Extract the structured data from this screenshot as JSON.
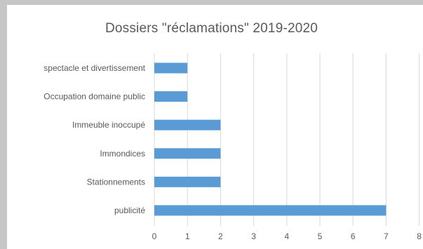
{
  "chart_data": {
    "type": "bar",
    "orientation": "horizontal",
    "title": "Dossiers \"réclamations\" 2019-2020",
    "xlabel": "",
    "ylabel": "",
    "categories": [
      "spectacle et divertissement",
      "Occupation domaine public",
      "Immeuble inoccupé",
      "Immondices",
      "Stationnements",
      "publicité"
    ],
    "values": [
      1,
      1,
      2,
      2,
      2,
      7
    ],
    "xlim": [
      0,
      8
    ],
    "xticks": [
      "0",
      "1",
      "2",
      "3",
      "4",
      "5",
      "6",
      "7",
      "8"
    ],
    "grid": "vertical",
    "legend": "none",
    "bar_color": "#5b9bd5",
    "grid_color": "#d9d9d9",
    "text_color": "#595959"
  }
}
